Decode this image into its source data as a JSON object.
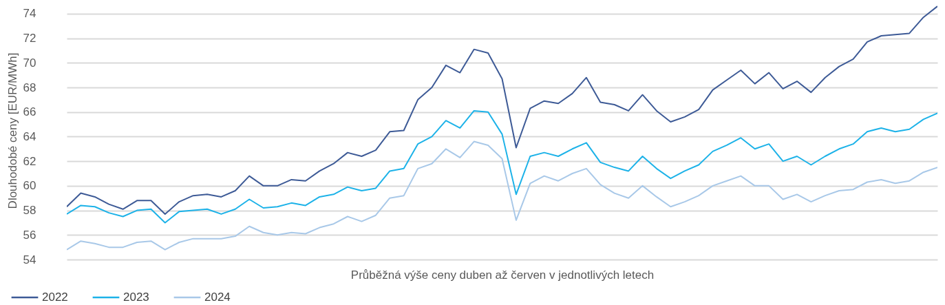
{
  "chart_data": {
    "type": "line",
    "xlabel": "Průběžná výše ceny duben až červen v jednotlivých letech",
    "ylabel": "Dlouhodobé ceny [EUR/MWh]",
    "categories": [
      null,
      null,
      null,
      null,
      null,
      null,
      null,
      null,
      null,
      null,
      null,
      null,
      null,
      null,
      null,
      null,
      null,
      null,
      null,
      null,
      null,
      null,
      null,
      null,
      null,
      null,
      null,
      null,
      null,
      null,
      null,
      null,
      null,
      null,
      null,
      null,
      null,
      null,
      null,
      null,
      null,
      null,
      null,
      null,
      null,
      null,
      null,
      null,
      null,
      null,
      null,
      null,
      null,
      null,
      null,
      null,
      null,
      null,
      null,
      null,
      null,
      null,
      null
    ],
    "series": [
      {
        "name": "2022",
        "color": "#3d5a96",
        "values": [
          58.3,
          59.4,
          59.1,
          58.5,
          58.1,
          58.8,
          58.8,
          57.7,
          58.7,
          59.2,
          59.3,
          59.1,
          59.6,
          60.8,
          60.0,
          60.0,
          60.5,
          60.4,
          61.2,
          61.8,
          62.7,
          62.4,
          62.9,
          64.4,
          64.5,
          67.0,
          68.0,
          69.8,
          69.2,
          71.1,
          70.8,
          68.7,
          63.1,
          66.3,
          66.9,
          66.7,
          67.5,
          68.8,
          66.8,
          66.6,
          66.1,
          67.4,
          66.1,
          65.2,
          65.6,
          66.2,
          67.8,
          68.6,
          69.4,
          68.3,
          69.2,
          67.9,
          68.5,
          67.6,
          68.8,
          69.7,
          70.3,
          71.7,
          72.2,
          72.3,
          72.4,
          73.7,
          74.6
        ]
      },
      {
        "name": "2023",
        "color": "#1cb2e8",
        "values": [
          57.7,
          58.4,
          58.3,
          57.8,
          57.5,
          58.0,
          58.1,
          57.0,
          57.9,
          58.0,
          58.1,
          57.7,
          58.1,
          58.9,
          58.2,
          58.3,
          58.6,
          58.4,
          59.1,
          59.3,
          59.9,
          59.6,
          59.8,
          61.2,
          61.4,
          63.4,
          64.0,
          65.3,
          64.7,
          66.1,
          66.0,
          64.2,
          59.3,
          62.4,
          62.7,
          62.4,
          63.0,
          63.5,
          61.9,
          61.5,
          61.2,
          62.4,
          61.4,
          60.6,
          61.2,
          61.7,
          62.8,
          63.3,
          63.9,
          63.0,
          63.4,
          62.0,
          62.4,
          61.7,
          62.4,
          63.0,
          63.4,
          64.4,
          64.7,
          64.4,
          64.6,
          65.4,
          65.9
        ]
      },
      {
        "name": "2024",
        "color": "#a8c8e8",
        "values": [
          54.8,
          55.5,
          55.3,
          55.0,
          55.0,
          55.4,
          55.5,
          54.8,
          55.4,
          55.7,
          55.7,
          55.7,
          55.9,
          56.7,
          56.2,
          56.0,
          56.2,
          56.1,
          56.6,
          56.9,
          57.5,
          57.1,
          57.6,
          59.0,
          59.2,
          61.4,
          61.8,
          63.0,
          62.3,
          63.6,
          63.3,
          62.2,
          57.2,
          60.2,
          60.8,
          60.4,
          61.0,
          61.4,
          60.1,
          59.4,
          59.0,
          60.0,
          59.1,
          58.3,
          58.7,
          59.2,
          60.0,
          60.4,
          60.8,
          60.0,
          60.0,
          58.9,
          59.3,
          58.7,
          59.2,
          59.6,
          59.7,
          60.3,
          60.5,
          60.2,
          60.4,
          61.1,
          61.5
        ]
      }
    ],
    "ylim": [
      54,
      75
    ],
    "yticks": [
      54,
      56,
      58,
      60,
      62,
      64,
      66,
      68,
      70,
      72,
      74
    ],
    "grid": "y",
    "legend": "bottom left",
    "marker": "none",
    "line_style": "solid"
  }
}
